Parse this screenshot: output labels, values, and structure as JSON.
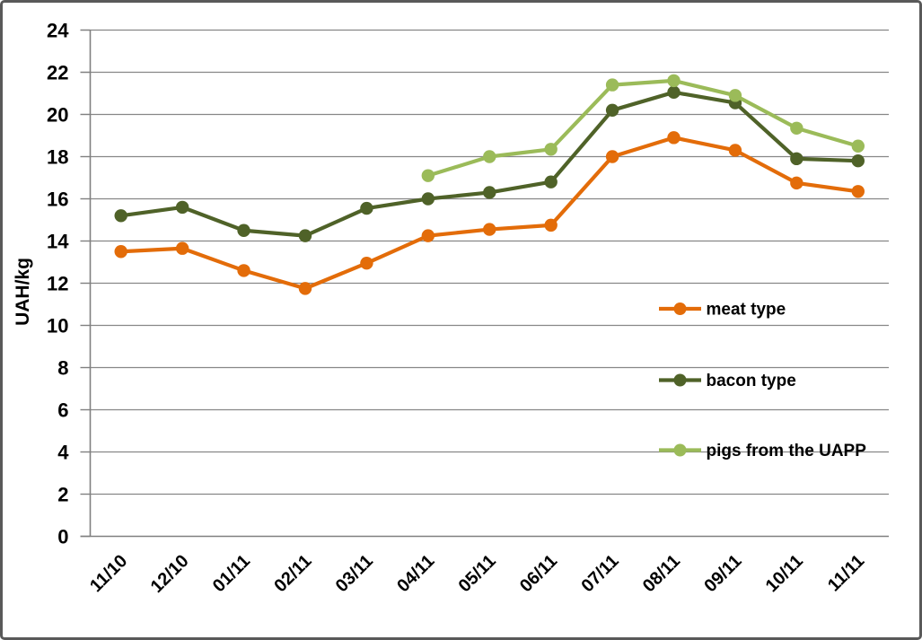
{
  "chart": {
    "y_axis_title": "UAH/kg"
  },
  "chart_data": {
    "type": "line",
    "title": "",
    "xlabel": "",
    "ylabel": "UAH/kg",
    "ylim": [
      0,
      24
    ],
    "ytick_step": 2,
    "grid": true,
    "legend_position": "inside-right",
    "categories": [
      "11/10",
      "12/10",
      "01/11",
      "02/11",
      "03/11",
      "04/11",
      "05/11",
      "06/11",
      "07/11",
      "08/11",
      "09/11",
      "10/11",
      "11/11"
    ],
    "series": [
      {
        "name": "meat type",
        "color": "#E36C09",
        "values": [
          13.5,
          13.65,
          12.6,
          11.75,
          12.95,
          14.25,
          14.55,
          14.75,
          18.0,
          18.9,
          18.3,
          16.75,
          16.35
        ]
      },
      {
        "name": "bacon type",
        "color": "#4F6228",
        "values": [
          15.2,
          15.6,
          14.5,
          14.25,
          15.55,
          16.0,
          16.3,
          16.8,
          20.2,
          21.05,
          20.55,
          17.9,
          17.8
        ]
      },
      {
        "name": "pigs from the UAPP",
        "color": "#9BBB59",
        "values": [
          null,
          null,
          null,
          null,
          null,
          17.1,
          18.0,
          18.35,
          21.4,
          21.6,
          20.9,
          19.35,
          18.5
        ]
      }
    ]
  },
  "colors": {
    "gridline": "#878787",
    "axis": "#808080",
    "frame_border": "#595959",
    "text": "#000000",
    "background": "#FFFFFF"
  }
}
